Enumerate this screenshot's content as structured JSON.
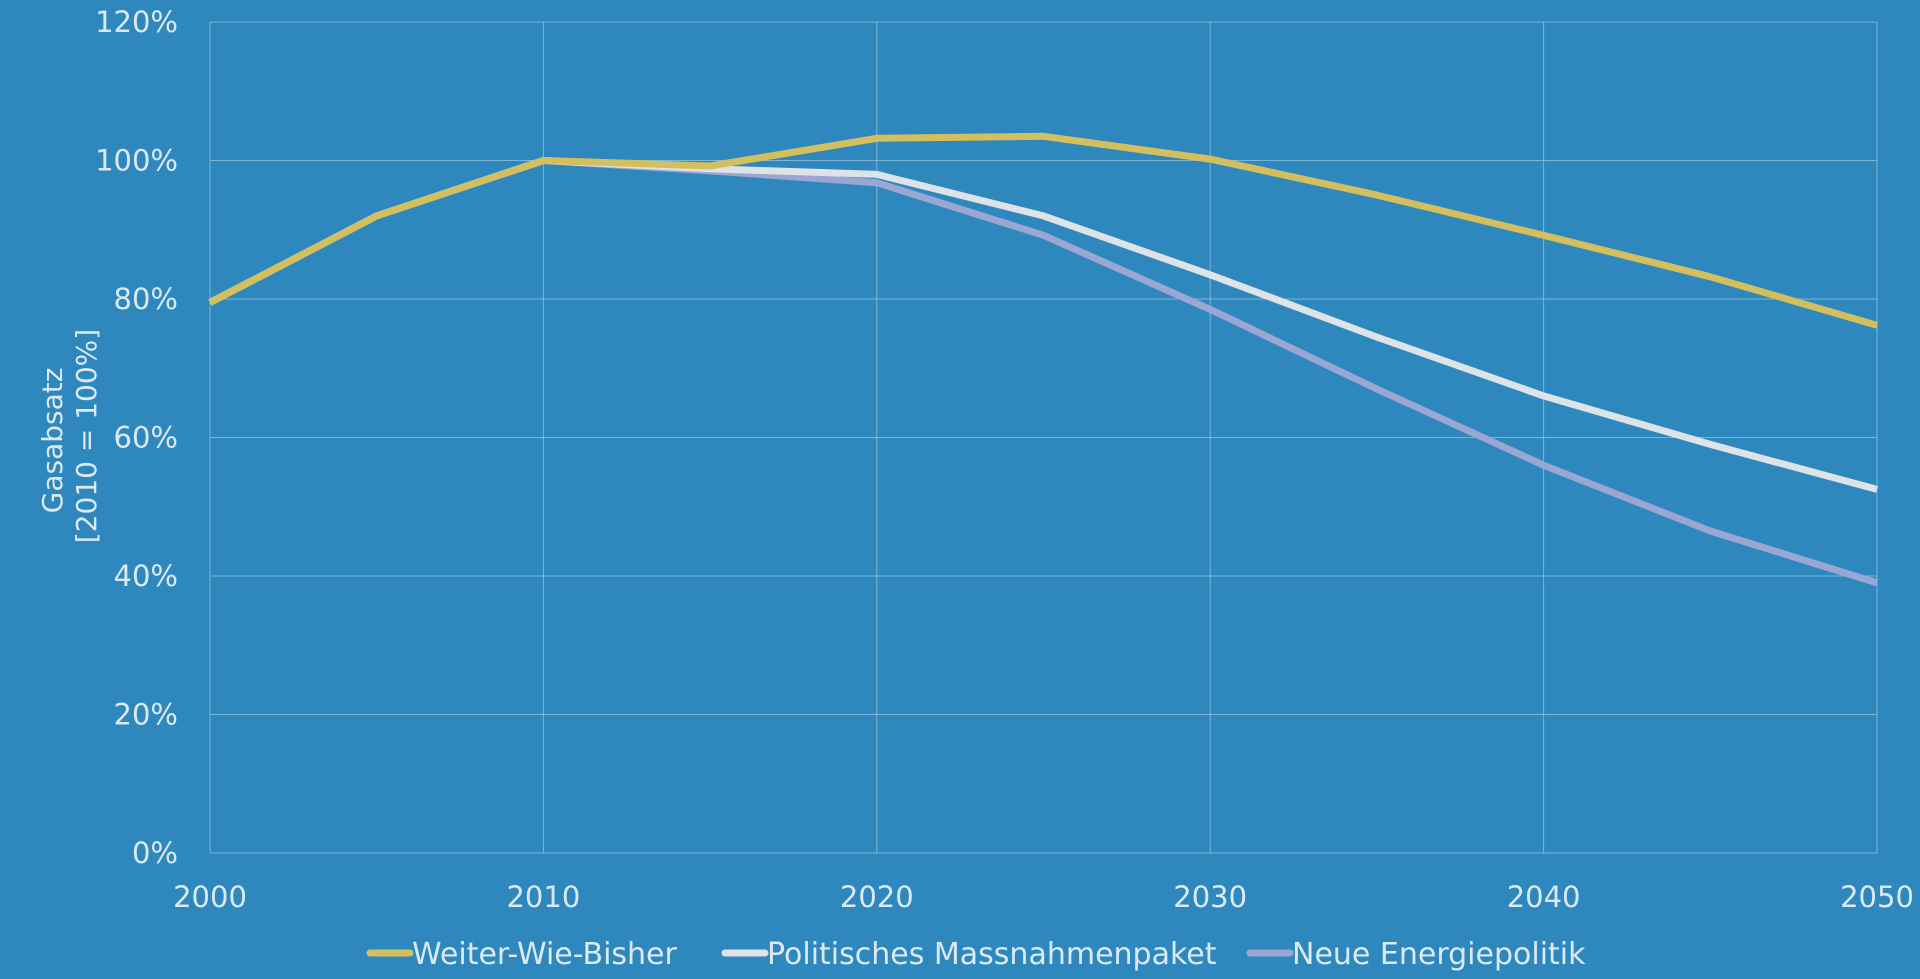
{
  "chart_data": {
    "type": "line",
    "x": [
      2000,
      2005,
      2010,
      2015,
      2020,
      2025,
      2030,
      2035,
      2040,
      2045,
      2050
    ],
    "xlim": [
      2000,
      2050
    ],
    "ylim": [
      0,
      120
    ],
    "x_ticks": [
      "2000",
      "2010",
      "2020",
      "2030",
      "2040",
      "2050"
    ],
    "y_ticks": [
      "0%",
      "20%",
      "40%",
      "60%",
      "80%",
      "100%",
      "120%"
    ],
    "ylabel_lines": [
      "Gasabsatz",
      "[2010 = 100%]"
    ],
    "xlabel": "",
    "grid": true,
    "legend_position": "bottom",
    "background_color": "#2e88bd",
    "series": [
      {
        "name": "Weiter-Wie-Bisher",
        "color": "#d4bf5f",
        "values": [
          79.5,
          92,
          100,
          99.2,
          103.2,
          103.5,
          100.2,
          95,
          89.2,
          83.2,
          76.2
        ]
      },
      {
        "name": "Politisches Massnahmenpaket",
        "color": "#dde3e6",
        "values": [
          79.5,
          92,
          100,
          98.8,
          98,
          92,
          83.5,
          74.5,
          66,
          59,
          52.5
        ]
      },
      {
        "name": "Neue Energiepolitik",
        "color": "#9aa6d4",
        "values": [
          79.5,
          92,
          100,
          98.5,
          96.8,
          89.2,
          78.5,
          67,
          56,
          46.5,
          39
        ]
      }
    ]
  }
}
